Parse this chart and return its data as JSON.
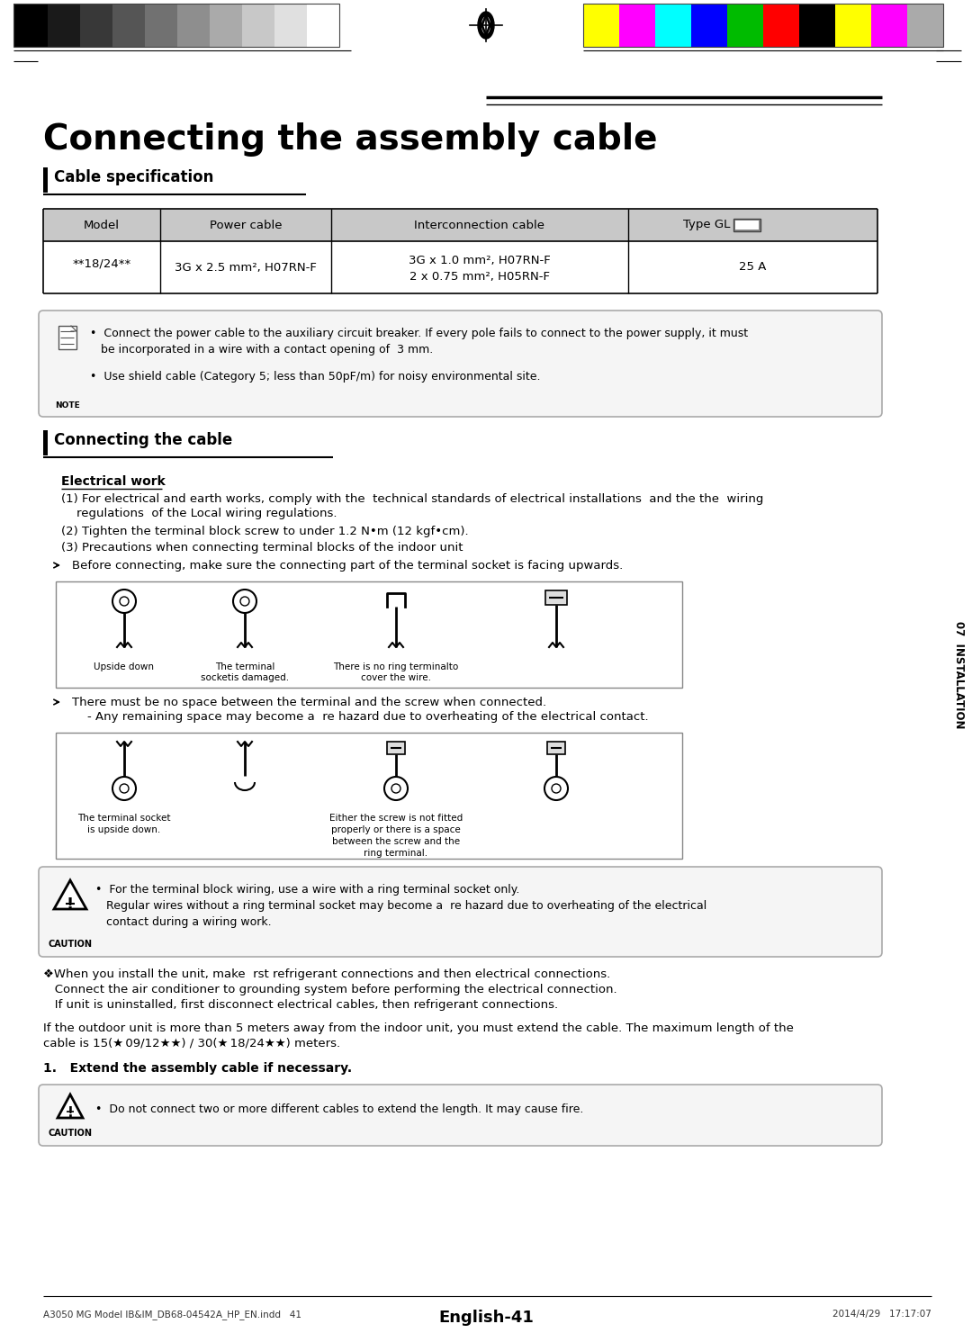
{
  "page_title": "Connecting the assembly cable",
  "section1_title": "Cable specification",
  "section2_title": "Connecting the cable",
  "table_headers": [
    "Model",
    "Power cable",
    "Interconnection cable",
    "Type GL"
  ],
  "table_row_col1": "★ 18/24★★",
  "table_row_col2": "3G x 2.5 mm², H07RN-F",
  "table_row_col3a": "3G x 1.0 mm², H07RN-F",
  "table_row_col3b": "2 x 0.75 mm², H05RN-F",
  "table_row_col4": "25 A",
  "note_text1a": "•  Connect the power cable to the auxiliary circuit breaker. If every pole fails to connect to the power supply, it must",
  "note_text1b": "   be incorporated in a wire with a contact opening of  3 mm.",
  "note_text2": "•  Use shield cable (Category 5; less than 50pF/m) for noisy environmental site.",
  "electrical_work_title": "Electrical work",
  "elec_item1a": "(1) For electrical and earth works, comply with the  technical standards of electrical installations  and the the  wiring",
  "elec_item1b": "    regulations  of the Local wiring regulations.",
  "elec_item2": "(2) Tighten the terminal block screw to under 1.2 N•m (12 kgf•cm).",
  "elec_item3": "(3) Precautions when connecting terminal blocks of the indoor unit",
  "bullet1": "Before connecting, make sure the connecting part of the terminal socket is facing upwards.",
  "img1_label1": "Upside down",
  "img1_label2": "The terminal\nsocketis damaged.",
  "img1_label3": "There is no ring terminalto\ncover the wire.",
  "bullet2a": "There must be no space between the terminal and the screw when connected.",
  "bullet2b": "    - Any remaining space may become a  re hazard due to overheating of the electrical contact.",
  "img2_label1a": "The terminal socket",
  "img2_label1b": "is upside down.",
  "img2_label3a": "Either the screw is not fitted",
  "img2_label3b": "properly or there is a space",
  "img2_label3c": "between the screw and the",
  "img2_label3d": "ring terminal.",
  "caution_text1": "•  For the terminal block wiring, use a wire with a ring terminal socket only.",
  "caution_text2": "   Regular wires without a ring terminal socket may become a  re hazard due to overheating of the electrical",
  "caution_text3": "   contact during a wiring work.",
  "bottom_text1a": "❖When you install the unit, make  rst refrigerant connections and then electrical connections.",
  "bottom_text1b": "   Connect the air conditioner to grounding system before performing the electrical connection.",
  "bottom_text1c": "   If unit is uninstalled, first disconnect electrical cables, then refrigerant connections.",
  "bottom_text2a": "If the outdoor unit is more than 5 meters away from the indoor unit, you must extend the cable. The maximum length of the",
  "bottom_text2b": "cable is 15(★ 09/12★★) / 30(★ 18/24★★) meters.",
  "extend_title": "1.   Extend the assembly cable if necessary.",
  "caution2_text": "•  Do not connect two or more different cables to extend the length. It may cause fire.",
  "footer_left": "A3050 MG Model IB&IM_DB68-04542A_HP_EN.indd   41",
  "footer_right": "2014/4/29   17:17:07",
  "footer_center": "English-41",
  "side_label": "07  INSTALLATION",
  "bg_color": "#ffffff",
  "text_color": "#000000",
  "table_header_bg": "#c8c8c8",
  "gray_left_bars": [
    "#000000",
    "#1a1a1a",
    "#383838",
    "#555555",
    "#717171",
    "#8e8e8e",
    "#aaaaaa",
    "#c8c8c8",
    "#e0e0e0",
    "#ffffff"
  ],
  "gray_bar_widths": [
    38,
    36,
    36,
    36,
    36,
    36,
    36,
    36,
    36,
    36
  ],
  "color_bars": [
    "#ffff00",
    "#ff00ff",
    "#00ffff",
    "#0000ff",
    "#00bb00",
    "#ff0000",
    "#000000",
    "#ffff00",
    "#ff00ff",
    "#aaaaaa"
  ],
  "color_bar_widths": [
    40,
    40,
    40,
    40,
    40,
    40,
    40,
    40,
    40,
    40
  ]
}
